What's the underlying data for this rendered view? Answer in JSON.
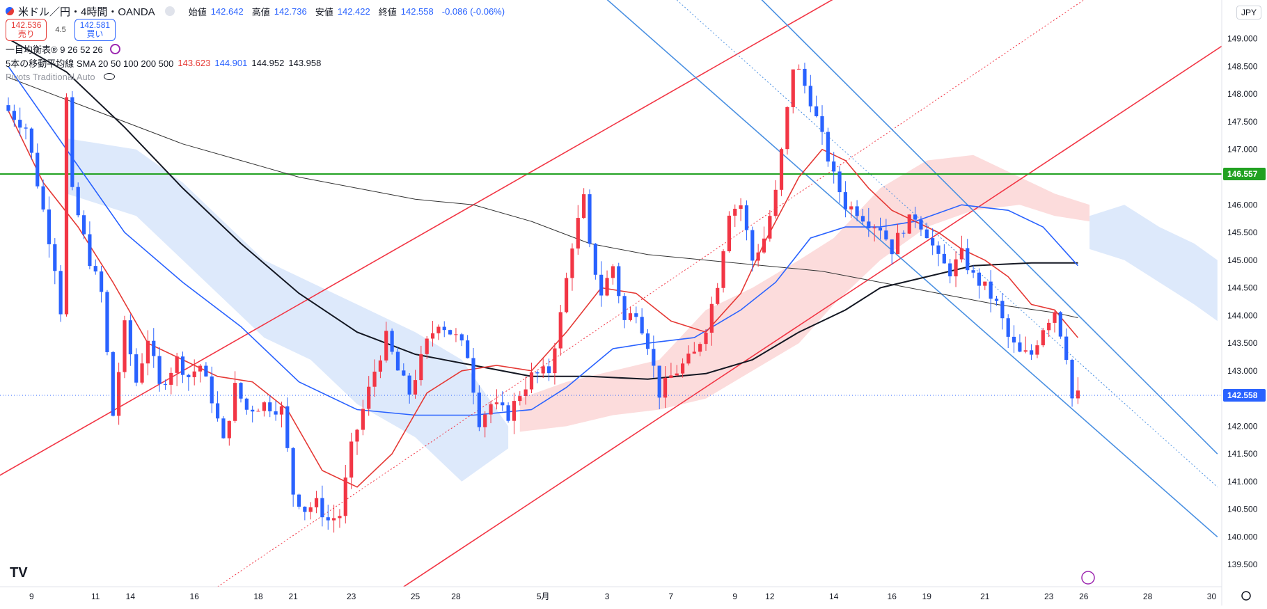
{
  "header": {
    "symbol": "米ドル／円・4時間・OANDA",
    "open_label": "始値",
    "open": "142.642",
    "high_label": "高値",
    "high": "142.736",
    "low_label": "安値",
    "low": "142.422",
    "close_label": "終値",
    "close": "142.558",
    "change": "-0.086 (-0.06%)",
    "sell_price": "142.536",
    "sell_label": "売り",
    "buy_price": "142.581",
    "buy_label": "買い",
    "spread": "4.5",
    "ichimoku": "一目均衡表® 9 26 52 26",
    "ma_title": "5本の移動平均線 SMA 20 50 100 200 500",
    "ma_values": [
      "143.623",
      "144.901",
      "144.952",
      "143.958"
    ],
    "pivots": "Pivots Traditional Auto",
    "currency": "JPY"
  },
  "colors": {
    "up": "#f23645",
    "down": "#2962ff",
    "sma20": "#e53935",
    "sma50": "#2962ff",
    "sma100": "#131722",
    "sma200": "#333333",
    "hline": "#21a121",
    "cloud_bull": "#fcdcdc",
    "cloud_bear": "#dde9fb"
  },
  "chart_data": {
    "type": "candlestick",
    "y_ticks": [
      139.5,
      140.0,
      140.5,
      141.0,
      141.5,
      142.0,
      142.5,
      143.0,
      143.5,
      144.0,
      144.5,
      145.0,
      145.5,
      146.0,
      146.5,
      147.0,
      147.5,
      148.0,
      148.5,
      149.0
    ],
    "y_range": [
      139.1,
      149.7
    ],
    "x_labels": [
      {
        "bar": 4,
        "label": "9"
      },
      {
        "bar": 15,
        "label": "11"
      },
      {
        "bar": 21,
        "label": "14"
      },
      {
        "bar": 32,
        "label": "16"
      },
      {
        "bar": 43,
        "label": "18"
      },
      {
        "bar": 49,
        "label": "21"
      },
      {
        "bar": 59,
        "label": "23"
      },
      {
        "bar": 70,
        "label": "25"
      },
      {
        "bar": 77,
        "label": "28"
      },
      {
        "bar": 92,
        "label": "5月"
      },
      {
        "bar": 103,
        "label": "3"
      },
      {
        "bar": 114,
        "label": "7"
      },
      {
        "bar": 125,
        "label": "9"
      },
      {
        "bar": 131,
        "label": "12"
      },
      {
        "bar": 142,
        "label": "14"
      },
      {
        "bar": 152,
        "label": "16"
      },
      {
        "bar": 158,
        "label": "19"
      },
      {
        "bar": 168,
        "label": "21"
      },
      {
        "bar": 179,
        "label": "23"
      },
      {
        "bar": 185,
        "label": "26"
      },
      {
        "bar": 196,
        "label": "28"
      },
      {
        "bar": 207,
        "label": "30"
      }
    ],
    "close_path": [
      [
        0,
        147.7
      ],
      [
        3,
        147.4
      ],
      [
        5,
        146.4
      ],
      [
        8,
        144.9
      ],
      [
        9,
        144.1
      ],
      [
        10,
        147.9
      ],
      [
        11,
        146.2
      ],
      [
        14,
        145.0
      ],
      [
        16,
        144.4
      ],
      [
        18,
        142.2
      ],
      [
        20,
        143.8
      ],
      [
        22,
        142.8
      ],
      [
        24,
        143.6
      ],
      [
        26,
        142.7
      ],
      [
        29,
        143.2
      ],
      [
        31,
        142.9
      ],
      [
        33,
        143.1
      ],
      [
        35,
        142.5
      ],
      [
        37,
        141.7
      ],
      [
        39,
        142.7
      ],
      [
        41,
        142.3
      ],
      [
        44,
        142.4
      ],
      [
        47,
        142.3
      ],
      [
        49,
        140.8
      ],
      [
        51,
        140.5
      ],
      [
        53,
        140.6
      ],
      [
        55,
        140.3
      ],
      [
        57,
        140.4
      ],
      [
        59,
        141.6
      ],
      [
        61,
        142.3
      ],
      [
        63,
        143.0
      ],
      [
        65,
        143.6
      ],
      [
        67,
        143.0
      ],
      [
        69,
        142.6
      ],
      [
        72,
        143.5
      ],
      [
        74,
        143.9
      ],
      [
        77,
        143.6
      ],
      [
        79,
        143.3
      ],
      [
        81,
        142.1
      ],
      [
        83,
        142.4
      ],
      [
        86,
        142.2
      ],
      [
        88,
        142.6
      ],
      [
        90,
        142.9
      ],
      [
        93,
        143.0
      ],
      [
        95,
        144.0
      ],
      [
        97,
        145.3
      ],
      [
        99,
        146.1
      ],
      [
        100,
        145.2
      ],
      [
        102,
        144.4
      ],
      [
        104,
        144.9
      ],
      [
        106,
        143.9
      ],
      [
        108,
        144.1
      ],
      [
        110,
        143.5
      ],
      [
        112,
        142.6
      ],
      [
        114,
        142.9
      ],
      [
        116,
        143.1
      ],
      [
        118,
        143.3
      ],
      [
        120,
        143.8
      ],
      [
        122,
        144.6
      ],
      [
        124,
        145.9
      ],
      [
        126,
        146.0
      ],
      [
        128,
        145.0
      ],
      [
        130,
        145.4
      ],
      [
        132,
        146.2
      ],
      [
        134,
        147.7
      ],
      [
        135,
        148.5
      ],
      [
        136,
        148.4
      ],
      [
        138,
        147.9
      ],
      [
        140,
        147.2
      ],
      [
        142,
        146.5
      ],
      [
        144,
        146.0
      ],
      [
        146,
        145.9
      ],
      [
        148,
        145.7
      ],
      [
        150,
        145.6
      ],
      [
        152,
        145.2
      ],
      [
        154,
        145.6
      ],
      [
        156,
        145.8
      ],
      [
        158,
        145.5
      ],
      [
        160,
        145.0
      ],
      [
        162,
        144.8
      ],
      [
        164,
        145.1
      ],
      [
        166,
        144.7
      ],
      [
        168,
        144.5
      ],
      [
        170,
        144.2
      ],
      [
        172,
        143.6
      ],
      [
        174,
        143.3
      ],
      [
        176,
        143.3
      ],
      [
        178,
        143.8
      ],
      [
        180,
        144.1
      ],
      [
        182,
        143.3
      ],
      [
        183,
        142.5
      ],
      [
        184,
        142.56
      ]
    ],
    "sma20": [
      [
        0,
        147.7
      ],
      [
        6,
        146.4
      ],
      [
        12,
        145.6
      ],
      [
        18,
        144.6
      ],
      [
        24,
        143.5
      ],
      [
        30,
        143.2
      ],
      [
        36,
        142.9
      ],
      [
        42,
        142.8
      ],
      [
        48,
        142.3
      ],
      [
        54,
        141.2
      ],
      [
        60,
        140.9
      ],
      [
        66,
        141.5
      ],
      [
        72,
        142.6
      ],
      [
        78,
        143.0
      ],
      [
        84,
        143.1
      ],
      [
        90,
        143.0
      ],
      [
        96,
        143.7
      ],
      [
        102,
        144.5
      ],
      [
        108,
        144.4
      ],
      [
        114,
        143.9
      ],
      [
        120,
        143.7
      ],
      [
        126,
        144.4
      ],
      [
        130,
        145.3
      ],
      [
        136,
        146.5
      ],
      [
        140,
        147.0
      ],
      [
        144,
        146.8
      ],
      [
        148,
        146.3
      ],
      [
        152,
        145.9
      ],
      [
        156,
        145.7
      ],
      [
        160,
        145.5
      ],
      [
        164,
        145.2
      ],
      [
        168,
        145.0
      ],
      [
        172,
        144.7
      ],
      [
        176,
        144.2
      ],
      [
        180,
        144.1
      ],
      [
        184,
        143.6
      ]
    ],
    "sma50": [
      [
        0,
        148.5
      ],
      [
        10,
        147.0
      ],
      [
        20,
        145.5
      ],
      [
        30,
        144.6
      ],
      [
        40,
        143.8
      ],
      [
        50,
        142.8
      ],
      [
        60,
        142.3
      ],
      [
        70,
        142.2
      ],
      [
        80,
        142.2
      ],
      [
        90,
        142.3
      ],
      [
        96,
        142.7
      ],
      [
        104,
        143.4
      ],
      [
        110,
        143.5
      ],
      [
        118,
        143.6
      ],
      [
        126,
        144.1
      ],
      [
        132,
        144.6
      ],
      [
        138,
        145.4
      ],
      [
        144,
        145.6
      ],
      [
        150,
        145.6
      ],
      [
        156,
        145.7
      ],
      [
        164,
        146.0
      ],
      [
        172,
        145.9
      ],
      [
        178,
        145.6
      ],
      [
        184,
        144.9
      ]
    ],
    "sma100": [
      [
        0,
        149.0
      ],
      [
        10,
        148.4
      ],
      [
        20,
        147.4
      ],
      [
        30,
        146.3
      ],
      [
        40,
        145.3
      ],
      [
        50,
        144.4
      ],
      [
        60,
        143.7
      ],
      [
        70,
        143.3
      ],
      [
        80,
        143.1
      ],
      [
        90,
        142.9
      ],
      [
        100,
        142.9
      ],
      [
        110,
        142.85
      ],
      [
        120,
        142.95
      ],
      [
        128,
        143.2
      ],
      [
        136,
        143.7
      ],
      [
        144,
        144.1
      ],
      [
        150,
        144.5
      ],
      [
        158,
        144.7
      ],
      [
        166,
        144.9
      ],
      [
        176,
        144.95
      ],
      [
        184,
        144.95
      ]
    ],
    "sma200": [
      [
        0,
        148.3
      ],
      [
        10,
        147.9
      ],
      [
        20,
        147.5
      ],
      [
        30,
        147.1
      ],
      [
        40,
        146.8
      ],
      [
        50,
        146.5
      ],
      [
        60,
        146.3
      ],
      [
        70,
        146.1
      ],
      [
        80,
        146.0
      ],
      [
        90,
        145.7
      ],
      [
        100,
        145.3
      ],
      [
        110,
        145.1
      ],
      [
        120,
        145.0
      ],
      [
        130,
        144.9
      ],
      [
        140,
        144.8
      ],
      [
        150,
        144.6
      ],
      [
        160,
        144.4
      ],
      [
        170,
        144.2
      ],
      [
        180,
        144.05
      ],
      [
        184,
        143.96
      ]
    ],
    "cloud_segments": [
      {
        "type": "bear",
        "top": [
          [
            10,
            147.2
          ],
          [
            22,
            147.0
          ],
          [
            30,
            146.4
          ],
          [
            38,
            145.6
          ],
          [
            44,
            145.0
          ],
          [
            52,
            144.6
          ],
          [
            60,
            144.2
          ],
          [
            70,
            143.7
          ],
          [
            78,
            143.2
          ],
          [
            82,
            142.6
          ],
          [
            86,
            142.0
          ]
        ],
        "bottom": [
          [
            10,
            146.2
          ],
          [
            22,
            145.8
          ],
          [
            30,
            145.0
          ],
          [
            38,
            144.2
          ],
          [
            44,
            143.6
          ],
          [
            52,
            143.2
          ],
          [
            60,
            142.4
          ],
          [
            70,
            141.8
          ],
          [
            78,
            141.0
          ],
          [
            82,
            141.3
          ],
          [
            86,
            141.6
          ]
        ]
      },
      {
        "type": "bull",
        "top": [
          [
            88,
            142.5
          ],
          [
            96,
            142.8
          ],
          [
            104,
            143.0
          ],
          [
            112,
            143.2
          ],
          [
            120,
            144.1
          ],
          [
            128,
            144.5
          ],
          [
            136,
            145.0
          ],
          [
            142,
            145.4
          ],
          [
            150,
            146.3
          ],
          [
            158,
            146.8
          ],
          [
            166,
            146.9
          ],
          [
            174,
            146.5
          ],
          [
            180,
            146.2
          ],
          [
            186,
            146.0
          ]
        ],
        "bottom": [
          [
            88,
            141.9
          ],
          [
            96,
            142.0
          ],
          [
            104,
            142.2
          ],
          [
            112,
            142.3
          ],
          [
            120,
            142.5
          ],
          [
            128,
            143.0
          ],
          [
            136,
            143.5
          ],
          [
            142,
            144.2
          ],
          [
            150,
            145.0
          ],
          [
            158,
            145.6
          ],
          [
            166,
            145.9
          ],
          [
            174,
            146.0
          ],
          [
            180,
            145.8
          ],
          [
            186,
            145.7
          ]
        ]
      },
      {
        "type": "bear",
        "top": [
          [
            186,
            145.8
          ],
          [
            192,
            146.0
          ],
          [
            198,
            145.6
          ],
          [
            204,
            145.3
          ],
          [
            208,
            145.0
          ]
        ],
        "bottom": [
          [
            186,
            145.2
          ],
          [
            192,
            145.0
          ],
          [
            198,
            144.6
          ],
          [
            204,
            144.2
          ],
          [
            208,
            143.9
          ]
        ]
      }
    ],
    "horizontal_line": 146.557,
    "current_price": 142.558,
    "up_channel": {
      "upper": [
        [
          -10,
          140.6
        ],
        [
          155,
          150.5
        ]
      ],
      "lower": [
        [
          68,
          139.1
        ],
        [
          215,
          149.3
        ]
      ],
      "mid": [
        [
          36,
          139.1
        ],
        [
          185,
          149.7
        ]
      ]
    },
    "down_channel": {
      "upper": [
        [
          122,
          150.5
        ],
        [
          208,
          141.5
        ]
      ],
      "lower": [
        [
          102,
          149.8
        ],
        [
          208,
          140.0
        ]
      ],
      "mid": [
        [
          115,
          149.7
        ],
        [
          208,
          140.9
        ]
      ]
    }
  }
}
